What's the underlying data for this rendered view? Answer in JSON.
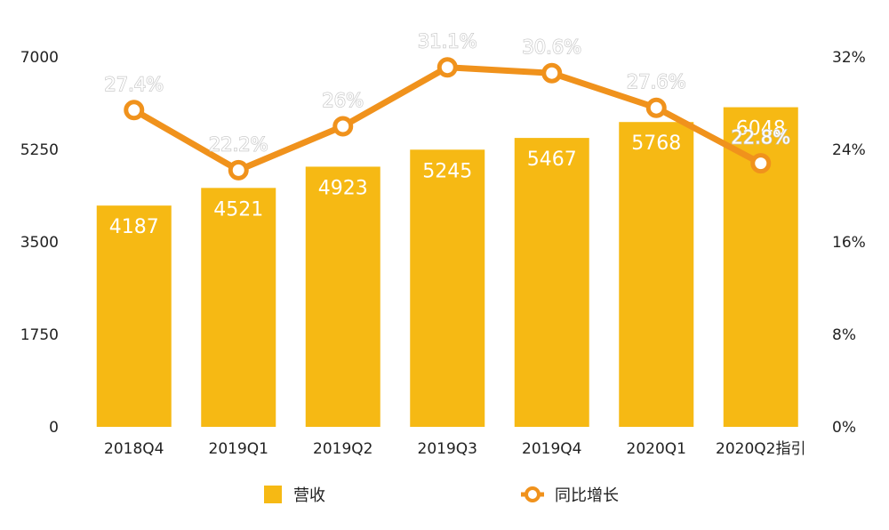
{
  "chart_data": {
    "type": "bar",
    "categories": [
      "2018Q4",
      "2019Q1",
      "2019Q2",
      "2019Q3",
      "2019Q4",
      "2020Q1",
      "2020Q2指引"
    ],
    "series": [
      {
        "name": "营收",
        "type": "bar",
        "axis": "left",
        "values": [
          4187,
          4521,
          4923,
          5245,
          5467,
          5768,
          6048
        ],
        "labels": [
          "4187",
          "4521",
          "4923",
          "5245",
          "5467",
          "5768",
          "6048"
        ]
      },
      {
        "name": "同比增长",
        "type": "line",
        "axis": "right",
        "values": [
          27.4,
          22.2,
          26.0,
          31.1,
          30.6,
          27.6,
          22.8
        ],
        "labels": [
          "27.4%",
          "22.2%",
          "26%",
          "31.1%",
          "30.6%",
          "27.6%",
          "22.8%"
        ]
      }
    ],
    "y_left": {
      "ylim": [
        0,
        7000
      ],
      "ticks": [
        "0",
        "1750",
        "3500",
        "5250",
        "7000"
      ]
    },
    "y_right": {
      "ylim": [
        0,
        32
      ],
      "ticks": [
        "0%",
        "8%",
        "16%",
        "24%",
        "32%"
      ]
    },
    "grid": false,
    "legend": "bottom-center",
    "colors": {
      "bar": "#F6B914",
      "line": "#F0921C",
      "marker_fill": "#ffffff"
    }
  }
}
